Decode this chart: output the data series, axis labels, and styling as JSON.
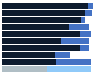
{
  "rows": [
    {
      "dark": 90,
      "light": 6
    },
    {
      "dark": 87,
      "light": 8
    },
    {
      "dark": 83,
      "light": 4
    },
    {
      "dark": 70,
      "light": 22
    },
    {
      "dark": 82,
      "light": 12
    },
    {
      "dark": 62,
      "light": 30
    },
    {
      "dark": 82,
      "light": 10
    },
    {
      "dark": 56,
      "light": 16
    },
    {
      "dark": 57,
      "light": 37
    },
    {
      "dark": 47,
      "light": 47
    }
  ],
  "dark_color": "#0d1b2e",
  "light_color": "#4472c4",
  "last_dark_color": "#b0bec5",
  "last_light_color": "#90caf9",
  "background_color": "#ffffff",
  "bar_height": 0.82,
  "xlim": 100
}
